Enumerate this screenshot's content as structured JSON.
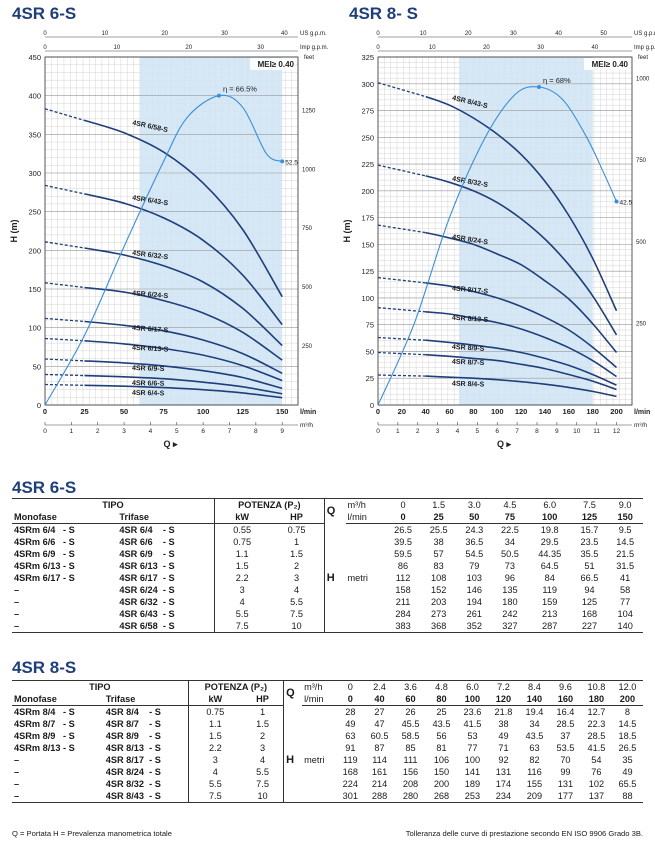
{
  "titles": {
    "chart1": "4SR 6-S",
    "chart2": "4SR 8- S",
    "table1": "4SR 6-S",
    "table2": "4SR 8-S"
  },
  "colors": {
    "curve": "#1f3f7a",
    "efficiency": "#3a8fd6",
    "band": "#cfe4f5",
    "grid": "#c9c9c9",
    "title": "#1f3f7a"
  },
  "chart_data": [
    {
      "type": "line",
      "title": "4SR 6-S",
      "ylabel": "H (m)",
      "xlabel": "Q",
      "mei_label": "MEI≥ 0.40",
      "x_unit_lmin": "l/min",
      "x_unit_m3h": "m³/h",
      "top_unit_us": "US g.p.m.",
      "top_unit_imp": "Imp g.p.m.",
      "right_unit": "feet",
      "ylim": [
        0,
        450
      ],
      "xlim": [
        0,
        160
      ],
      "y_ticks": [
        "0",
        "50",
        "100",
        "150",
        "200",
        "250",
        "300",
        "350",
        "400",
        "450"
      ],
      "x_ticks": [
        "0",
        "25",
        "50",
        "75",
        "100",
        "125",
        "150"
      ],
      "m3h_ticks": [
        "0",
        "1",
        "2",
        "3",
        "4",
        "5",
        "6",
        "7",
        "8",
        "9"
      ],
      "us_ticks": [
        "0",
        "10",
        "20",
        "30",
        "40"
      ],
      "imp_ticks": [
        "0",
        "10",
        "20",
        "30"
      ],
      "feet_ticks": [
        "250",
        "500",
        "750",
        "1000",
        "1250"
      ],
      "band_x": [
        60,
        150
      ],
      "x": [
        0,
        25,
        50,
        75,
        100,
        125,
        150
      ],
      "series": [
        {
          "name": "4SR 6/4-S",
          "values": [
            26.5,
            25.5,
            24.3,
            22.5,
            19.8,
            15.7,
            9.5
          ]
        },
        {
          "name": "4SR 6/6-S",
          "values": [
            39.5,
            38,
            36.5,
            34,
            29.5,
            23.5,
            14.5
          ]
        },
        {
          "name": "4SR 6/9-S",
          "values": [
            59.5,
            57,
            54.5,
            50.5,
            44.35,
            35.5,
            21.5
          ]
        },
        {
          "name": "4SR 6/13-S",
          "values": [
            86,
            83,
            79,
            73,
            64.5,
            51,
            31.5
          ]
        },
        {
          "name": "4SR 6/17-S",
          "values": [
            112,
            108,
            103,
            96,
            84,
            66.5,
            41
          ]
        },
        {
          "name": "4SR 6/24-S",
          "values": [
            158,
            152,
            146,
            135,
            119,
            94,
            58
          ]
        },
        {
          "name": "4SR 6/32-S",
          "values": [
            211,
            203,
            194,
            180,
            159,
            125,
            77
          ]
        },
        {
          "name": "4SR 6/43-S",
          "values": [
            284,
            273,
            261,
            242,
            213,
            168,
            104
          ]
        },
        {
          "name": "4SR 6/58-S",
          "values": [
            383,
            368,
            352,
            327,
            287,
            227,
            140
          ]
        }
      ],
      "efficiency": {
        "label": "η = 66.5%",
        "end_label": "52.5",
        "x": [
          0,
          25,
          50,
          75,
          90,
          110,
          125,
          140,
          150
        ],
        "values": [
          0,
          90,
          205,
          315,
          372,
          400,
          385,
          325,
          315
        ]
      }
    },
    {
      "type": "line",
      "title": "4SR 8- S",
      "ylabel": "H (m)",
      "xlabel": "Q",
      "mei_label": "MEI≥ 0.40",
      "x_unit_lmin": "l/min",
      "x_unit_m3h": "m³/h",
      "top_unit_us": "US g.p.m.",
      "top_unit_imp": "Imp g.p.m.",
      "right_unit": "feet",
      "ylim": [
        0,
        325
      ],
      "xlim": [
        0,
        213
      ],
      "y_ticks": [
        "0",
        "25",
        "50",
        "75",
        "100",
        "125",
        "150",
        "175",
        "200",
        "225",
        "250",
        "275",
        "300",
        "325"
      ],
      "x_ticks": [
        "0",
        "20",
        "40",
        "60",
        "80",
        "100",
        "120",
        "140",
        "160",
        "180",
        "200"
      ],
      "m3h_ticks": [
        "0",
        "1",
        "2",
        "3",
        "4",
        "5",
        "6",
        "7",
        "8",
        "9",
        "10",
        "11",
        "12"
      ],
      "us_ticks": [
        "0",
        "10",
        "20",
        "30",
        "40",
        "50"
      ],
      "imp_ticks": [
        "0",
        "10",
        "20",
        "30",
        "40"
      ],
      "feet_ticks": [
        "250",
        "500",
        "750",
        "1000"
      ],
      "band_x": [
        68,
        180
      ],
      "x": [
        0,
        40,
        60,
        80,
        100,
        120,
        140,
        160,
        180,
        200
      ],
      "series": [
        {
          "name": "4SR 8/4-S",
          "values": [
            28,
            27,
            26,
            25,
            23.6,
            21.8,
            19.4,
            16.4,
            12.7,
            8
          ]
        },
        {
          "name": "4SR 8/7-S",
          "values": [
            49,
            47,
            45.5,
            43.5,
            41.5,
            38,
            34,
            28.5,
            22.3,
            14.5
          ]
        },
        {
          "name": "4SR 8/9-S",
          "values": [
            63,
            60.5,
            58.5,
            56,
            53,
            49,
            43.5,
            37,
            28.5,
            18.5
          ]
        },
        {
          "name": "4SR 8/13-S",
          "values": [
            91,
            87,
            85,
            81,
            77,
            71,
            63,
            53.5,
            41.5,
            26.5
          ]
        },
        {
          "name": "4SR 8/17-S",
          "values": [
            119,
            114,
            111,
            106,
            100,
            92,
            82,
            70,
            54,
            35
          ]
        },
        {
          "name": "4SR 8/24-S",
          "values": [
            168,
            161,
            156,
            150,
            141,
            131,
            116,
            99,
            76,
            49
          ]
        },
        {
          "name": "4SR 8/32-S",
          "values": [
            224,
            214,
            208,
            200,
            189,
            174,
            155,
            131,
            102,
            65.5
          ]
        },
        {
          "name": "4SR 8/43-S",
          "values": [
            301,
            288,
            280,
            268,
            253,
            234,
            209,
            177,
            137,
            88
          ]
        }
      ],
      "efficiency": {
        "label": "η = 68%",
        "end_label": "42.5",
        "x": [
          0,
          30,
          60,
          90,
          115,
          135,
          155,
          175,
          190,
          200
        ],
        "values": [
          0,
          75,
          175,
          250,
          290,
          297,
          285,
          250,
          215,
          190
        ]
      }
    }
  ],
  "table1": {
    "hdr_tipo": "TIPO",
    "hdr_potenza": "POTENZA (P₂)",
    "hdr_mono": "Monofase",
    "hdr_tri": "Trifase",
    "hdr_kw": "kW",
    "hdr_hp": "HP",
    "hdr_q": "Q",
    "hdr_m3h": "m³/h",
    "hdr_lmin": "l/min",
    "hdr_h": "H",
    "hdr_metri": "metri",
    "m3h": [
      "0",
      "1.5",
      "3.0",
      "4.5",
      "6.0",
      "7.5",
      "9.0"
    ],
    "lmin": [
      "0",
      "25",
      "50",
      "75",
      "100",
      "125",
      "150"
    ],
    "rows": [
      {
        "mono": "4SRm 6/4   - S",
        "tri": "4SR 6/4    - S",
        "kw": "0.55",
        "hp": "0.75",
        "h": [
          "26.5",
          "25.5",
          "24.3",
          "22.5",
          "19.8",
          "15.7",
          "9.5"
        ]
      },
      {
        "mono": "4SRm 6/6   - S",
        "tri": "4SR 6/6    - S",
        "kw": "0.75",
        "hp": "1",
        "h": [
          "39.5",
          "38",
          "36.5",
          "34",
          "29.5",
          "23.5",
          "14.5"
        ]
      },
      {
        "mono": "4SRm 6/9   - S",
        "tri": "4SR 6/9    - S",
        "kw": "1.1",
        "hp": "1.5",
        "h": [
          "59.5",
          "57",
          "54.5",
          "50.5",
          "44.35",
          "35.5",
          "21.5"
        ]
      },
      {
        "mono": "4SRm 6/13 - S",
        "tri": "4SR 6/13  - S",
        "kw": "1.5",
        "hp": "2",
        "h": [
          "86",
          "83",
          "79",
          "73",
          "64.5",
          "51",
          "31.5"
        ]
      },
      {
        "mono": "4SRm 6/17 - S",
        "tri": "4SR 6/17  - S",
        "kw": "2.2",
        "hp": "3",
        "h": [
          "112",
          "108",
          "103",
          "96",
          "84",
          "66.5",
          "41"
        ]
      },
      {
        "mono": "–",
        "tri": "4SR 6/24  - S",
        "kw": "3",
        "hp": "4",
        "h": [
          "158",
          "152",
          "146",
          "135",
          "119",
          "94",
          "58"
        ]
      },
      {
        "mono": "–",
        "tri": "4SR 6/32  - S",
        "kw": "4",
        "hp": "5.5",
        "h": [
          "211",
          "203",
          "194",
          "180",
          "159",
          "125",
          "77"
        ]
      },
      {
        "mono": "–",
        "tri": "4SR 6/43  - S",
        "kw": "5.5",
        "hp": "7.5",
        "h": [
          "284",
          "273",
          "261",
          "242",
          "213",
          "168",
          "104"
        ]
      },
      {
        "mono": "–",
        "tri": "4SR 6/58  - S",
        "kw": "7.5",
        "hp": "10",
        "h": [
          "383",
          "368",
          "352",
          "327",
          "287",
          "227",
          "140"
        ]
      }
    ]
  },
  "table2": {
    "hdr_tipo": "TIPO",
    "hdr_potenza": "POTENZA (P₂)",
    "hdr_mono": "Monofase",
    "hdr_tri": "Trifase",
    "hdr_kw": "kW",
    "hdr_hp": "HP",
    "hdr_q": "Q",
    "hdr_m3h": "m³/h",
    "hdr_lmin": "l/min",
    "hdr_h": "H",
    "hdr_metri": "metri",
    "m3h": [
      "0",
      "2.4",
      "3.6",
      "4.8",
      "6.0",
      "7.2",
      "8.4",
      "9.6",
      "10.8",
      "12.0"
    ],
    "lmin": [
      "0",
      "40",
      "60",
      "80",
      "100",
      "120",
      "140",
      "160",
      "180",
      "200"
    ],
    "rows": [
      {
        "mono": "4SRm 8/4   - S",
        "tri": "4SR 8/4    - S",
        "kw": "0.75",
        "hp": "1",
        "h": [
          "28",
          "27",
          "26",
          "25",
          "23.6",
          "21.8",
          "19.4",
          "16.4",
          "12.7",
          "8"
        ]
      },
      {
        "mono": "4SRm 8/7   - S",
        "tri": "4SR 8/7    - S",
        "kw": "1.1",
        "hp": "1.5",
        "h": [
          "49",
          "47",
          "45.5",
          "43.5",
          "41.5",
          "38",
          "34",
          "28.5",
          "22.3",
          "14.5"
        ]
      },
      {
        "mono": "4SRm 8/9   - S",
        "tri": "4SR 8/9    - S",
        "kw": "1.5",
        "hp": "2",
        "h": [
          "63",
          "60.5",
          "58.5",
          "56",
          "53",
          "49",
          "43.5",
          "37",
          "28.5",
          "18.5"
        ]
      },
      {
        "mono": "4SRm 8/13 - S",
        "tri": "4SR 8/13  - S",
        "kw": "2.2",
        "hp": "3",
        "h": [
          "91",
          "87",
          "85",
          "81",
          "77",
          "71",
          "63",
          "53.5",
          "41.5",
          "26.5"
        ]
      },
      {
        "mono": "–",
        "tri": "4SR 8/17  - S",
        "kw": "3",
        "hp": "4",
        "h": [
          "119",
          "114",
          "111",
          "106",
          "100",
          "92",
          "82",
          "70",
          "54",
          "35"
        ]
      },
      {
        "mono": "–",
        "tri": "4SR 8/24  - S",
        "kw": "4",
        "hp": "5.5",
        "h": [
          "168",
          "161",
          "156",
          "150",
          "141",
          "131",
          "116",
          "99",
          "76",
          "49"
        ]
      },
      {
        "mono": "–",
        "tri": "4SR 8/32  - S",
        "kw": "5.5",
        "hp": "7.5",
        "h": [
          "224",
          "214",
          "208",
          "200",
          "189",
          "174",
          "155",
          "131",
          "102",
          "65.5"
        ]
      },
      {
        "mono": "–",
        "tri": "4SR 8/43  - S",
        "kw": "7.5",
        "hp": "10",
        "h": [
          "301",
          "288",
          "280",
          "268",
          "253",
          "234",
          "209",
          "177",
          "137",
          "88"
        ]
      }
    ]
  },
  "footer": {
    "left": "Q = Portata    H = Prevalenza manometrica totale",
    "right": "Tolleranza delle curve di prestazione secondo EN ISO 9906 Grado 3B."
  }
}
